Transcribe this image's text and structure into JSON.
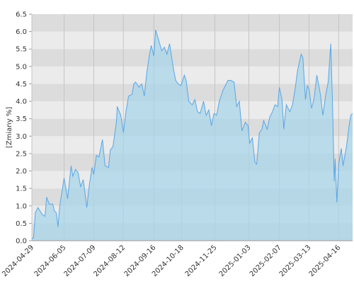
{
  "chart_data": {
    "type": "area",
    "y_label": "[Zmiany %]",
    "x": [
      "2024-04-29",
      "2024-05-01",
      "2024-05-03",
      "2024-05-06",
      "2024-05-11",
      "2024-05-14",
      "2024-05-16",
      "2024-05-19",
      "2024-05-23",
      "2024-05-25",
      "2024-05-27",
      "2024-05-29",
      "2024-05-31",
      "2024-06-05",
      "2024-06-09",
      "2024-06-13",
      "2024-06-15",
      "2024-06-18",
      "2024-06-21",
      "2024-06-24",
      "2024-06-27",
      "2024-07-01",
      "2024-07-04",
      "2024-07-07",
      "2024-07-09",
      "2024-07-12",
      "2024-07-15",
      "2024-07-19",
      "2024-07-22",
      "2024-07-26",
      "2024-07-28",
      "2024-07-31",
      "2024-08-04",
      "2024-08-05",
      "2024-08-09",
      "2024-08-12",
      "2024-08-15",
      "2024-08-18",
      "2024-08-22",
      "2024-08-24",
      "2024-08-26",
      "2024-08-30",
      "2024-09-02",
      "2024-09-05",
      "2024-09-08",
      "2024-09-11",
      "2024-09-13",
      "2024-09-16",
      "2024-09-18",
      "2024-09-21",
      "2024-09-25",
      "2024-09-28",
      "2024-10-01",
      "2024-10-04",
      "2024-10-08",
      "2024-10-11",
      "2024-10-14",
      "2024-10-17",
      "2024-10-21",
      "2024-10-23",
      "2024-10-26",
      "2024-10-30",
      "2024-11-02",
      "2024-11-05",
      "2024-11-08",
      "2024-11-12",
      "2024-11-15",
      "2024-11-18",
      "2024-11-21",
      "2024-11-24",
      "2024-11-27",
      "2024-11-30",
      "2024-12-04",
      "2024-12-07",
      "2024-12-10",
      "2024-12-13",
      "2024-12-17",
      "2024-12-20",
      "2024-12-23",
      "2024-12-26",
      "2024-12-30",
      "2025-01-02",
      "2025-01-04",
      "2025-01-07",
      "2025-01-10",
      "2025-01-12",
      "2025-01-15",
      "2025-01-18",
      "2025-01-20",
      "2025-01-24",
      "2025-01-27",
      "2025-01-30",
      "2025-02-02",
      "2025-02-05",
      "2025-02-07",
      "2025-02-10",
      "2025-02-12",
      "2025-02-15",
      "2025-02-19",
      "2025-02-22",
      "2025-02-25",
      "2025-02-28",
      "2025-03-04",
      "2025-03-06",
      "2025-03-09",
      "2025-03-11",
      "2025-03-13",
      "2025-03-16",
      "2025-03-19",
      "2025-03-22",
      "2025-03-26",
      "2025-03-29",
      "2025-04-01",
      "2025-04-04",
      "2025-04-07",
      "2025-04-09",
      "2025-04-11",
      "2025-04-12",
      "2025-04-14",
      "2025-04-16",
      "2025-04-19",
      "2025-04-21",
      "2025-04-25",
      "2025-04-28",
      "2025-04-30",
      "2025-05-02"
    ],
    "series": [
      {
        "color": "#5aa5e6",
        "fill": "#a8d5ea",
        "values": [
          0.05,
          0.1,
          0.8,
          0.95,
          0.75,
          0.7,
          1.25,
          1.05,
          1.05,
          0.85,
          0.8,
          0.4,
          1.0,
          1.8,
          1.2,
          2.15,
          1.85,
          2.05,
          1.95,
          1.55,
          1.75,
          0.95,
          1.6,
          2.1,
          1.9,
          2.45,
          2.4,
          2.9,
          2.15,
          2.1,
          2.6,
          2.7,
          3.4,
          3.85,
          3.6,
          3.1,
          3.7,
          4.15,
          4.2,
          4.5,
          4.55,
          4.4,
          4.5,
          4.15,
          4.85,
          5.35,
          5.6,
          5.3,
          6.05,
          5.8,
          5.45,
          5.55,
          5.35,
          5.65,
          5.0,
          4.6,
          4.5,
          4.45,
          4.75,
          4.6,
          4.0,
          3.9,
          4.05,
          3.7,
          3.65,
          4.0,
          3.6,
          3.75,
          3.3,
          3.65,
          3.6,
          4.0,
          4.3,
          4.45,
          4.6,
          4.6,
          4.55,
          3.85,
          4.0,
          3.15,
          3.4,
          3.3,
          2.8,
          2.95,
          2.25,
          2.2,
          3.1,
          3.2,
          3.45,
          3.2,
          3.55,
          3.7,
          3.9,
          3.85,
          4.4,
          4.05,
          3.2,
          3.9,
          3.7,
          3.9,
          4.35,
          4.9,
          5.35,
          5.25,
          4.05,
          4.45,
          4.35,
          3.8,
          4.1,
          4.75,
          4.2,
          3.6,
          4.15,
          4.55,
          5.65,
          3.9,
          1.7,
          2.35,
          1.1,
          2.2,
          2.65,
          2.15,
          2.7,
          3.3,
          3.6,
          3.65
        ]
      }
    ],
    "xlim": [
      "2024-04-29",
      "2025-05-02"
    ],
    "xticks": [
      "2024-04-29",
      "2024-06-05",
      "2024-07-09",
      "2024-08-12",
      "2024-09-16",
      "2024-10-18",
      "2024-11-25",
      "2025-01-03",
      "2025-02-07",
      "2025-03-13",
      "2025-04-16"
    ],
    "ylim": [
      0,
      6.5
    ],
    "yticks": [
      {
        "value": 0,
        "label": "0.0"
      },
      0.5,
      {
        "value": 1,
        "label": "1.0"
      },
      1.5,
      {
        "value": 2,
        "label": "2.0"
      },
      2.5,
      {
        "value": 3,
        "label": "3.0"
      },
      3.5,
      {
        "value": 4,
        "label": "4.0"
      },
      4.5,
      {
        "value": 5,
        "label": "5.0"
      },
      5.5,
      {
        "value": 6,
        "label": "6.0"
      },
      6.5
    ],
    "band_colors": [
      "#dcdcdc",
      "#ebebeb"
    ],
    "grid": true
  }
}
